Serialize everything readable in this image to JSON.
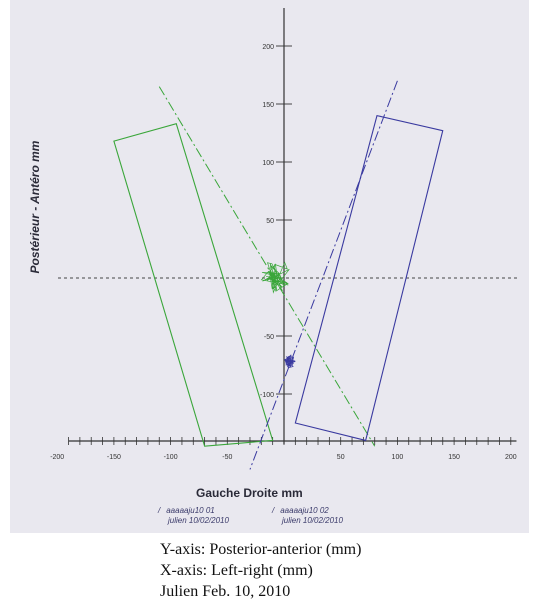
{
  "chart_data": {
    "type": "line",
    "ylabel": "Postérieur - Antéro mm",
    "xlabel": "Gauche Droite mm",
    "xlim": [
      -200,
      200
    ],
    "ylim": [
      -140,
      230
    ],
    "x_ticks": [
      -200,
      -150,
      -100,
      -50,
      50,
      100,
      150,
      200
    ],
    "y_ticks": [
      200,
      150,
      100,
      50,
      -50,
      -100
    ],
    "x_tick_labels": [
      "-200",
      "-150",
      "-100",
      "-50",
      "50",
      "100",
      "150",
      "200"
    ],
    "y_tick_labels": [
      "200",
      "150",
      "100",
      "50",
      "-50",
      "-100"
    ],
    "series": [
      {
        "name": "aaaaaju10 01",
        "subtitle": "julien 10/02/2010",
        "color": "#3aa63a",
        "rectangle": [
          [
            -150,
            118
          ],
          [
            -95,
            133
          ],
          [
            -10,
            -140
          ],
          [
            -70,
            -145
          ]
        ],
        "axis_line": [
          [
            -110,
            165
          ],
          [
            80,
            -145
          ]
        ],
        "center": [
          -8,
          2
        ]
      },
      {
        "name": "aaaaaju10 02",
        "subtitle": "julien 10/02/2010",
        "color": "#3a3aa0",
        "rectangle": [
          [
            82,
            140
          ],
          [
            140,
            127
          ],
          [
            72,
            -140
          ],
          [
            10,
            -125
          ]
        ],
        "axis_line": [
          [
            100,
            170
          ],
          [
            -30,
            -165
          ]
        ],
        "center": [
          5,
          -72
        ]
      }
    ],
    "grid": false
  },
  "legend": [
    {
      "mark": "/",
      "name": "aaaaaju10 01",
      "date": "julien 10/02/2010"
    },
    {
      "mark": "/",
      "name": "aaaaaju10 02",
      "date": "julien 10/02/2010"
    }
  ],
  "captions": {
    "line1": "Y-axis: Posterior-anterior (mm)",
    "line2": "X-axis: Left-right (mm)",
    "line3": "Julien Feb. 10, 2010"
  }
}
